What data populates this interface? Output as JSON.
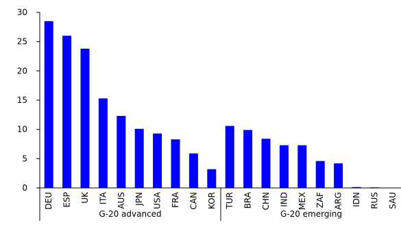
{
  "chart_data": {
    "type": "bar",
    "title": "",
    "xlabel": "",
    "ylabel": "",
    "ylim": [
      0,
      30
    ],
    "yticks": [
      0,
      5,
      10,
      15,
      20,
      25,
      30
    ],
    "grid": false,
    "legend": "none",
    "bar_color": "#0000FF",
    "categories": [
      "DEU",
      "ESP",
      "UK",
      "ITA",
      "AUS",
      "JPN",
      "USA",
      "FRA",
      "CAN",
      "KOR",
      "TUR",
      "BRA",
      "CHN",
      "IND",
      "MEX",
      "ZAF",
      "ARG",
      "IDN",
      "RUS",
      "SAU"
    ],
    "values": [
      28.5,
      26.0,
      23.8,
      15.3,
      12.3,
      10.1,
      9.3,
      8.3,
      5.9,
      3.2,
      10.6,
      9.9,
      8.4,
      7.3,
      7.3,
      4.6,
      4.2,
      0.15,
      0.1,
      0.0
    ],
    "groups": [
      {
        "label": "G-20 advanced",
        "count": 10
      },
      {
        "label": "G-20 emerging",
        "count": 10
      }
    ]
  }
}
